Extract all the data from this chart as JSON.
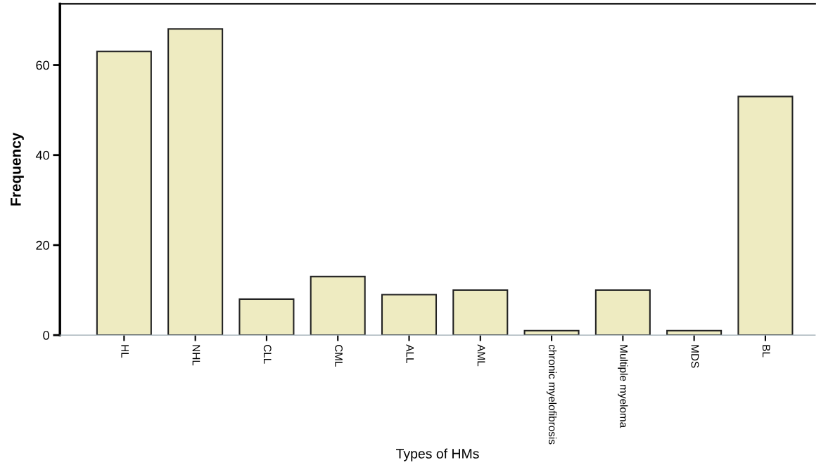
{
  "chart_data": {
    "type": "bar",
    "xlabel": "Types of HMs",
    "ylabel": "Frequency",
    "categories": [
      "HL",
      "NHL",
      "CLL",
      "CML",
      "ALL",
      "AML",
      "chronic myelofibrosis",
      "Multiple myeloma",
      "MDS",
      "BL"
    ],
    "values": [
      63,
      68,
      8,
      13,
      9,
      10,
      1,
      10,
      1,
      53
    ],
    "color": "#eeebc1",
    "ylim": [
      0,
      73.6
    ],
    "yticks": [
      0,
      20,
      40,
      60
    ],
    "grid": false,
    "legend": false
  }
}
